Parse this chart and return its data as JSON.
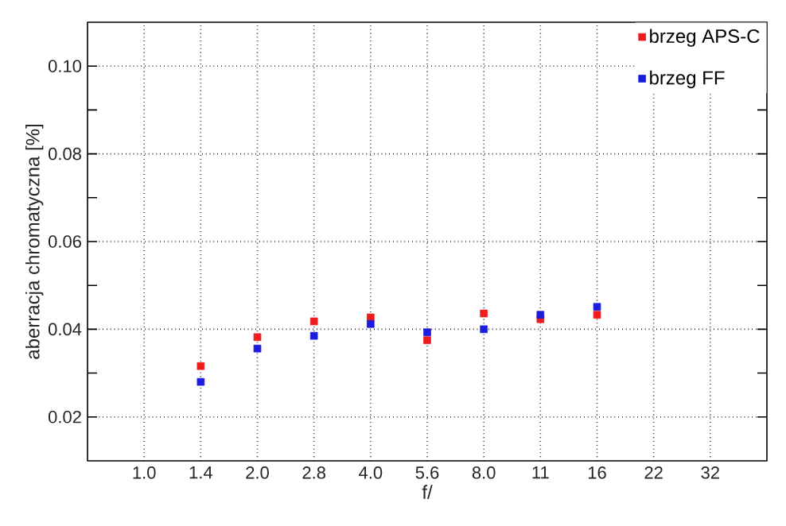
{
  "chart_data": {
    "type": "scatter",
    "xlabel": "f/",
    "ylabel": "aberracja chromatyczna [%]",
    "categories": [
      "1.0",
      "1.4",
      "2.0",
      "2.8",
      "4.0",
      "5.6",
      "8.0",
      "11",
      "16",
      "22",
      "32"
    ],
    "series": [
      {
        "name": "brzeg APS-C",
        "color": "#ee1c1c",
        "values": [
          null,
          0.0316,
          0.0382,
          0.0418,
          0.0427,
          0.0375,
          0.0436,
          0.0423,
          0.0433,
          null,
          null
        ]
      },
      {
        "name": "brzeg FF",
        "color": "#1c1cdd",
        "values": [
          null,
          0.028,
          0.0356,
          0.0385,
          0.0412,
          0.0393,
          0.04,
          0.0433,
          0.0451,
          null,
          null
        ]
      }
    ],
    "ylim": [
      0.01,
      0.11
    ],
    "yticks": [
      {
        "value": 0.02,
        "label": "0.02"
      },
      {
        "value": 0.04,
        "label": "0.04"
      },
      {
        "value": 0.06,
        "label": "0.06"
      },
      {
        "value": 0.08,
        "label": "0.08"
      },
      {
        "value": 0.1,
        "label": "0.10"
      }
    ],
    "grid": true,
    "legend": "top right",
    "marker": "square"
  }
}
